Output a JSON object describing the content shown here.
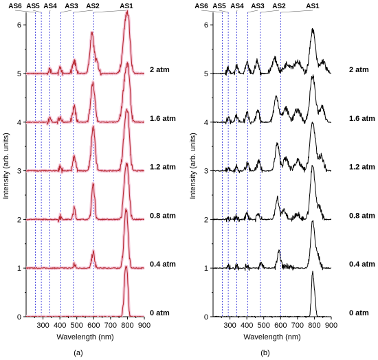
{
  "chart_data": [
    {
      "type": "line",
      "panel_label": "(a)",
      "xlabel": "Wavelength (nm)",
      "ylabel": "Intensity (arb. units)",
      "xlim": [
        200,
        900
      ],
      "ylim": [
        0,
        6.2
      ],
      "xticks": [
        300,
        400,
        500,
        600,
        700,
        800,
        900
      ],
      "yticks": [
        0,
        1,
        2,
        3,
        4,
        5,
        6
      ],
      "line_color": "#b5262e",
      "halo_color": "#f4c6d8",
      "reference_lines": [
        {
          "label": "AS1",
          "x": 600
        },
        {
          "label": "AS2",
          "x": 480
        },
        {
          "label": "AS3",
          "x": 405
        },
        {
          "label": "AS4",
          "x": 340
        },
        {
          "label": "AS5",
          "x": 290
        },
        {
          "label": "AS6",
          "x": 255
        }
      ],
      "series": [
        {
          "name": "0 atm",
          "baseline": 0,
          "peaks": [
            {
              "x": 788,
              "h": 0.9,
              "w": 8
            },
            {
              "x": 800,
              "h": 0.55,
              "w": 6
            }
          ]
        },
        {
          "name": "0.4 atm",
          "baseline": 1,
          "peaks": [
            {
              "x": 485,
              "h": 0.08,
              "w": 5
            },
            {
              "x": 597,
              "h": 0.32,
              "w": 8
            },
            {
              "x": 788,
              "h": 0.95,
              "w": 10
            },
            {
              "x": 800,
              "h": 0.55,
              "w": 8
            }
          ]
        },
        {
          "name": "0.8 atm",
          "baseline": 2,
          "peaks": [
            {
              "x": 402,
              "h": 0.06,
              "w": 5
            },
            {
              "x": 485,
              "h": 0.22,
              "w": 6
            },
            {
              "x": 597,
              "h": 0.72,
              "w": 9
            },
            {
              "x": 790,
              "h": 0.95,
              "w": 12
            },
            {
              "x": 805,
              "h": 0.5,
              "w": 9
            }
          ]
        },
        {
          "name": "1.2 atm",
          "baseline": 3,
          "peaks": [
            {
              "x": 402,
              "h": 0.08,
              "w": 6
            },
            {
              "x": 485,
              "h": 0.28,
              "w": 8
            },
            {
              "x": 597,
              "h": 0.9,
              "w": 11
            },
            {
              "x": 790,
              "h": 1.0,
              "w": 14
            },
            {
              "x": 805,
              "h": 0.55,
              "w": 10
            }
          ]
        },
        {
          "name": "1.6 atm",
          "baseline": 4,
          "peaks": [
            {
              "x": 340,
              "h": 0.05,
              "w": 6
            },
            {
              "x": 402,
              "h": 0.1,
              "w": 7
            },
            {
              "x": 485,
              "h": 0.3,
              "w": 9
            },
            {
              "x": 595,
              "h": 0.78,
              "w": 12
            },
            {
              "x": 790,
              "h": 1.0,
              "w": 16
            },
            {
              "x": 808,
              "h": 0.5,
              "w": 10
            }
          ]
        },
        {
          "name": "2 atm",
          "baseline": 5,
          "peaks": [
            {
              "x": 340,
              "h": 0.08,
              "w": 6
            },
            {
              "x": 402,
              "h": 0.12,
              "w": 7
            },
            {
              "x": 485,
              "h": 0.25,
              "w": 10
            },
            {
              "x": 590,
              "h": 0.8,
              "w": 12
            },
            {
              "x": 620,
              "h": 0.2,
              "w": 10
            },
            {
              "x": 790,
              "h": 1.05,
              "w": 16
            },
            {
              "x": 808,
              "h": 0.55,
              "w": 10
            }
          ]
        }
      ]
    },
    {
      "type": "line",
      "panel_label": "(b)",
      "xlabel": "Wavelength (nm)",
      "ylabel": "Intensity (arb. units)",
      "xlim": [
        200,
        900
      ],
      "ylim": [
        0,
        6.2
      ],
      "xticks": [
        300,
        400,
        500,
        600,
        700,
        800,
        900
      ],
      "yticks": [
        0,
        1,
        2,
        3,
        4,
        5,
        6
      ],
      "line_color": "#000000",
      "reference_lines": [
        {
          "label": "AS1",
          "x": 600
        },
        {
          "label": "AS2",
          "x": 480
        },
        {
          "label": "AS3",
          "x": 405
        },
        {
          "label": "AS4",
          "x": 340
        },
        {
          "label": "AS5",
          "x": 290
        },
        {
          "label": "AS6",
          "x": 255
        }
      ],
      "series": [
        {
          "name": "0 atm",
          "baseline": 0,
          "peaks": [
            {
              "x": 788,
              "h": 0.82,
              "w": 6
            },
            {
              "x": 800,
              "h": 0.5,
              "w": 6
            }
          ]
        },
        {
          "name": "0.4 atm",
          "baseline": 1,
          "peaks": [
            {
              "x": 290,
              "h": 0.03,
              "w": 5
            },
            {
              "x": 340,
              "h": 0.05,
              "w": 6
            },
            {
              "x": 402,
              "h": 0.06,
              "w": 6
            },
            {
              "x": 485,
              "h": 0.12,
              "w": 7
            },
            {
              "x": 590,
              "h": 0.32,
              "w": 10
            },
            {
              "x": 640,
              "h": 0.05,
              "w": 15
            },
            {
              "x": 790,
              "h": 0.95,
              "w": 12
            },
            {
              "x": 820,
              "h": 0.25,
              "w": 12
            }
          ]
        },
        {
          "name": "0.8 atm",
          "baseline": 2,
          "peaks": [
            {
              "x": 290,
              "h": 0.04,
              "w": 6
            },
            {
              "x": 340,
              "h": 0.06,
              "w": 7
            },
            {
              "x": 402,
              "h": 0.1,
              "w": 8
            },
            {
              "x": 470,
              "h": 0.12,
              "w": 8
            },
            {
              "x": 580,
              "h": 0.45,
              "w": 10
            },
            {
              "x": 620,
              "h": 0.2,
              "w": 12
            },
            {
              "x": 700,
              "h": 0.12,
              "w": 15
            },
            {
              "x": 790,
              "h": 1.1,
              "w": 14
            },
            {
              "x": 830,
              "h": 0.25,
              "w": 12
            }
          ]
        },
        {
          "name": "1.2 atm",
          "baseline": 3,
          "peaks": [
            {
              "x": 290,
              "h": 0.06,
              "w": 6
            },
            {
              "x": 340,
              "h": 0.1,
              "w": 7
            },
            {
              "x": 402,
              "h": 0.14,
              "w": 8
            },
            {
              "x": 470,
              "h": 0.18,
              "w": 9
            },
            {
              "x": 580,
              "h": 0.55,
              "w": 12
            },
            {
              "x": 630,
              "h": 0.25,
              "w": 15
            },
            {
              "x": 700,
              "h": 0.2,
              "w": 18
            },
            {
              "x": 790,
              "h": 1.0,
              "w": 16
            },
            {
              "x": 840,
              "h": 0.3,
              "w": 14
            }
          ]
        },
        {
          "name": "1.6 atm",
          "baseline": 4,
          "peaks": [
            {
              "x": 290,
              "h": 0.08,
              "w": 7
            },
            {
              "x": 340,
              "h": 0.12,
              "w": 8
            },
            {
              "x": 402,
              "h": 0.18,
              "w": 9
            },
            {
              "x": 465,
              "h": 0.22,
              "w": 9
            },
            {
              "x": 575,
              "h": 0.52,
              "w": 14
            },
            {
              "x": 630,
              "h": 0.28,
              "w": 16
            },
            {
              "x": 700,
              "h": 0.25,
              "w": 18
            },
            {
              "x": 790,
              "h": 0.95,
              "w": 16
            },
            {
              "x": 845,
              "h": 0.3,
              "w": 14
            }
          ]
        },
        {
          "name": "2 atm",
          "baseline": 5,
          "peaks": [
            {
              "x": 290,
              "h": 0.1,
              "w": 7
            },
            {
              "x": 340,
              "h": 0.14,
              "w": 8
            },
            {
              "x": 402,
              "h": 0.2,
              "w": 9
            },
            {
              "x": 460,
              "h": 0.25,
              "w": 10
            },
            {
              "x": 565,
              "h": 0.3,
              "w": 16
            },
            {
              "x": 640,
              "h": 0.2,
              "w": 20
            },
            {
              "x": 700,
              "h": 0.25,
              "w": 20
            },
            {
              "x": 790,
              "h": 0.9,
              "w": 16
            },
            {
              "x": 850,
              "h": 0.25,
              "w": 16
            }
          ]
        }
      ]
    }
  ]
}
